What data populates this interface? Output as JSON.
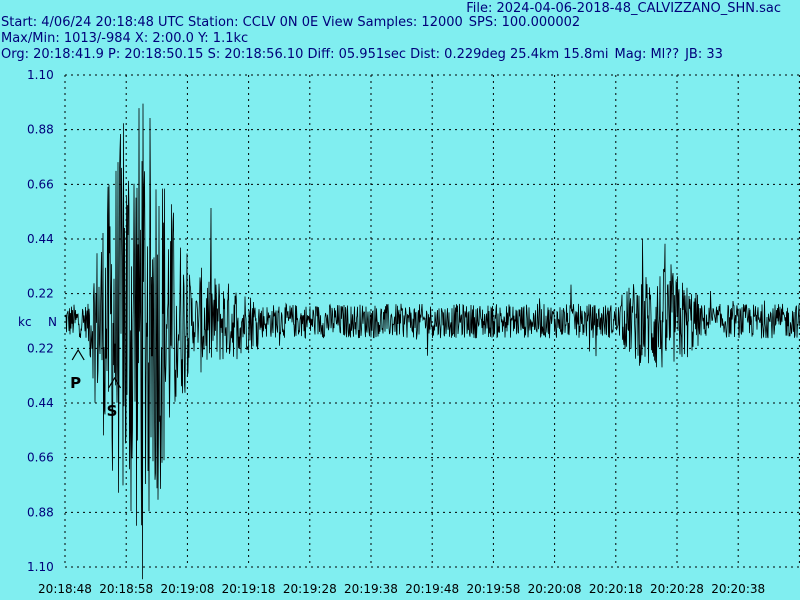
{
  "header": {
    "file": "File: 2024-04-06-2018-48_CALVIZZANO_SHN.sac",
    "start": "Start: 4/06/24 20:18:48 UTC Station: CCLV 0N 0E View Samples: 12000",
    "sps": "SPS: 100.000002",
    "maxmin": "Max/Min: 1013/-984 X: 2:00.0 Y: 1.1kc",
    "org": "Org: 20:18:41.9 P: 20:18:50.15 S: 20:18:56.10 Diff: 05.951sec Dist: 0.229deg 25.4km 15.8mi",
    "mag": "Mag: Ml??",
    "jb": "JB: 33"
  },
  "chart_data": {
    "type": "line",
    "units_label": "kc",
    "channel_label": "N",
    "y_ticks": [
      "1.10",
      "0.88",
      "0.66",
      "0.44",
      "0.22",
      "0.22",
      "0.44",
      "0.66",
      "0.88",
      "1.10"
    ],
    "x_ticks": [
      "20:18:48",
      "20:18:58",
      "20:19:08",
      "20:19:18",
      "20:19:28",
      "20:19:38",
      "20:19:48",
      "20:19:58",
      "20:20:08",
      "20:20:18",
      "20:20:28",
      "20:20:38"
    ],
    "ylim": [
      -1.1,
      1.1
    ],
    "xlim_seconds": [
      0,
      120
    ],
    "max_count": 1013,
    "min_count": -984,
    "picks": [
      {
        "label": "P",
        "time": "20:18:50.15"
      },
      {
        "label": "S",
        "time": "20:18:56.10"
      }
    ],
    "grid": true,
    "trace_color": "#000000",
    "background_color": "#80eef0"
  }
}
